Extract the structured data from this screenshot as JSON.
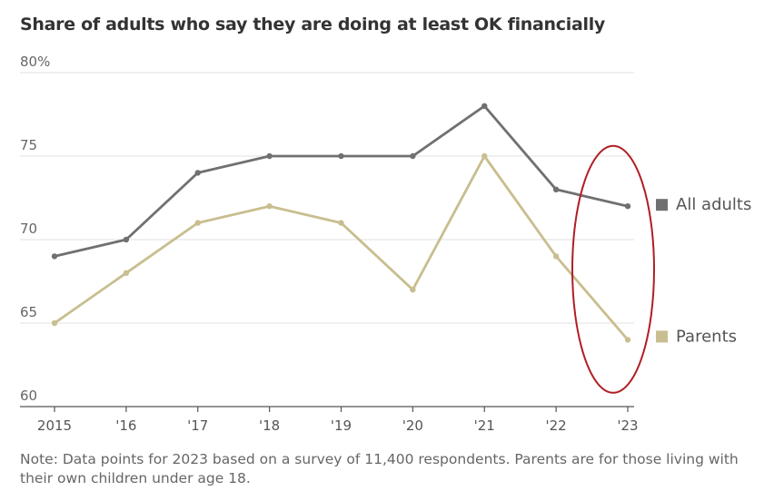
{
  "chart_data": {
    "type": "line",
    "title": "Share of adults who say they are doing at least OK financially",
    "categories": [
      "2015",
      "'16",
      "'17",
      "'18",
      "'19",
      "'20",
      "'21",
      "'22",
      "'23"
    ],
    "ylim": [
      60,
      80
    ],
    "yticks": [
      "60",
      "65",
      "70",
      "75",
      "80%"
    ],
    "xlabel": "",
    "ylabel": "",
    "series": [
      {
        "name": "All adults",
        "values": [
          69,
          70,
          74,
          75,
          75,
          75,
          78,
          73,
          72
        ],
        "color": "#707070"
      },
      {
        "name": "Parents",
        "values": [
          65,
          68,
          71,
          72,
          71,
          67,
          75,
          69,
          64
        ],
        "color": "#c8be8f"
      }
    ],
    "legend_placement": "right",
    "annotation": {
      "type": "ellipse-highlight",
      "around": "'23",
      "color": "#b01e23"
    }
  },
  "note": "Note: Data points for 2023 based on a survey of 11,400 respondents. Parents are for those living with their own children under age 18."
}
